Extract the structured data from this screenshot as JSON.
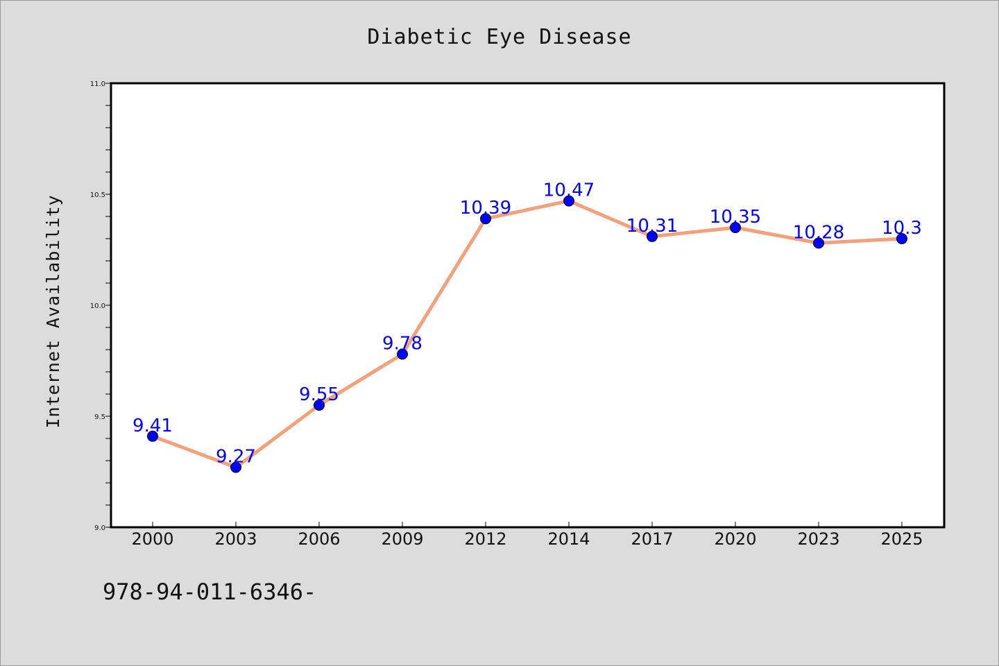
{
  "chart_data": {
    "type": "line",
    "title": "Diabetic Eye Disease",
    "xlabel": "",
    "ylabel": "Internet Availability",
    "categories": [
      "2000",
      "2003",
      "2006",
      "2009",
      "2012",
      "2014",
      "2017",
      "2020",
      "2023",
      "2025"
    ],
    "series": [
      {
        "values": [
          9.41,
          9.27,
          9.55,
          9.78,
          10.39,
          10.47,
          10.31,
          10.35,
          10.28,
          10.3
        ],
        "data_labels": [
          "9.41",
          "9.27",
          "9.55",
          "9.78",
          "10.39",
          "10.47",
          "10.31",
          "10.35",
          "10.28",
          "10.3"
        ],
        "line_color": "#f4a07a",
        "marker_color": "#0000ff"
      }
    ],
    "ylim": [
      9.0,
      11.0
    ],
    "yticks": [
      "9.0",
      "9.5",
      "10.0",
      "10.5",
      "11.0"
    ],
    "grid": false,
    "legend": "none"
  },
  "footnote": "978-94-011-6346-",
  "colors": {
    "background": "#dcdcdc",
    "plot_background": "#ffffff",
    "line": "#f4a07a",
    "marker": "#0000ff",
    "data_label": "#0000ff"
  }
}
